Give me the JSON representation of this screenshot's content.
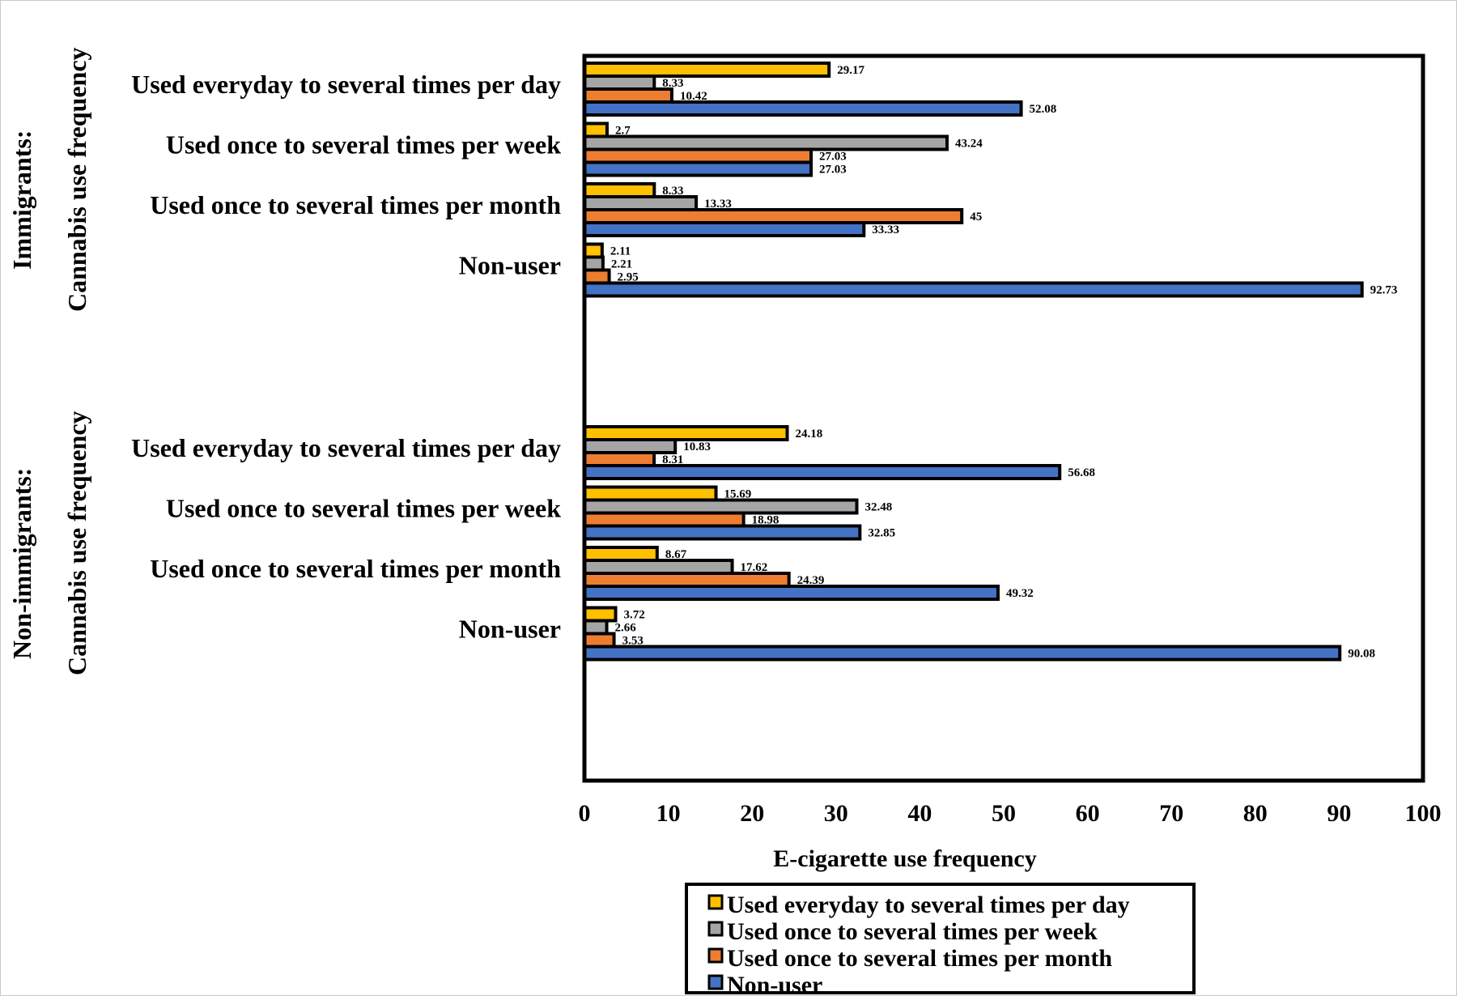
{
  "chart_data": {
    "type": "bar",
    "orientation": "horizontal",
    "xlabel": "E-cigarette use frequency",
    "xlim": [
      0,
      100
    ],
    "xticks": [
      0,
      10,
      20,
      30,
      40,
      50,
      60,
      70,
      80,
      90,
      100
    ],
    "xtick_labels": [
      "0",
      "10",
      "20",
      "30",
      "40",
      "50",
      "60",
      "70",
      "80",
      "90",
      "100"
    ],
    "legend_position": "bottom",
    "series": [
      {
        "name": "Used everyday to several times per day",
        "color": "#FFC000"
      },
      {
        "name": "Used once to several times per week",
        "color": "#A5A5A5"
      },
      {
        "name": "Used once to several times per month",
        "color": "#ED7D31"
      },
      {
        "name": "Non-user",
        "color": "#4472C4"
      }
    ],
    "groups": [
      {
        "title_line1": "Immigrants:",
        "title_line2": "Cannabis use frequency",
        "categories": [
          {
            "label": "Used everyday to several times per day",
            "values": [
              29.17,
              8.33,
              10.42,
              52.08
            ],
            "value_labels": [
              "29.17",
              "8.33",
              "10.42",
              "52.08"
            ]
          },
          {
            "label": "Used once to several times per week",
            "values": [
              2.7,
              43.24,
              27.03,
              27.03
            ],
            "value_labels": [
              "2.7",
              "43.24",
              "27.03",
              "27.03"
            ]
          },
          {
            "label": "Used once to several times per month",
            "values": [
              8.33,
              13.33,
              45,
              33.33
            ],
            "value_labels": [
              "8.33",
              "13.33",
              "45",
              "33.33"
            ]
          },
          {
            "label": "Non-user",
            "values": [
              2.11,
              2.21,
              2.95,
              92.73
            ],
            "value_labels": [
              "2.11",
              "2.21",
              "2.95",
              "92.73"
            ]
          }
        ]
      },
      {
        "title_line1": "Non-immigrants:",
        "title_line2": "Cannabis use frequency",
        "categories": [
          {
            "label": "Used everyday to several times per day",
            "values": [
              24.18,
              10.83,
              8.31,
              56.68
            ],
            "value_labels": [
              "24.18",
              "10.83",
              "8.31",
              "56.68"
            ]
          },
          {
            "label": "Used once to several times per week",
            "values": [
              15.69,
              32.48,
              18.98,
              32.85
            ],
            "value_labels": [
              "15.69",
              "32.48",
              "18.98",
              "32.85"
            ]
          },
          {
            "label": "Used once to several times per month",
            "values": [
              8.67,
              17.62,
              24.39,
              49.32
            ],
            "value_labels": [
              "8.67",
              "17.62",
              "24.39",
              "49.32"
            ]
          },
          {
            "label": "Non-user",
            "values": [
              3.72,
              2.66,
              3.53,
              90.08
            ],
            "value_labels": [
              "3.72",
              "2.66",
              "3.53",
              "90.08"
            ]
          }
        ]
      }
    ]
  }
}
